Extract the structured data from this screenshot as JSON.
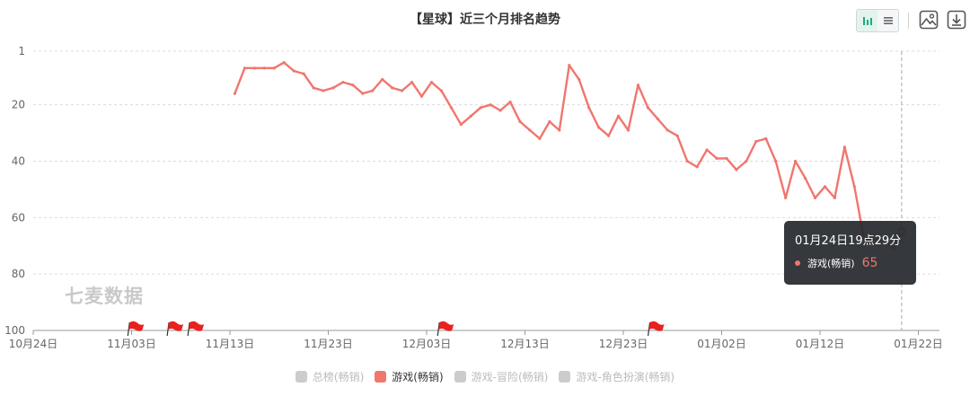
{
  "title": "【星球】近三个月排名趋势",
  "watermark": "七麦数据",
  "toolbar": {
    "icons": [
      "bar-chart-icon",
      "list-icon",
      "image-icon",
      "download-icon"
    ]
  },
  "tooltip": {
    "time": "01月24日19点29分",
    "series": "游戏(畅销)",
    "value": "65"
  },
  "legend": [
    {
      "name": "总榜(畅销)",
      "active": false
    },
    {
      "name": "游戏(畅销)",
      "active": true
    },
    {
      "name": "游戏-冒险(畅销)",
      "active": false
    },
    {
      "name": "游戏-角色扮演(畅销)",
      "active": false
    }
  ],
  "colors": {
    "series": "#f0766e",
    "flag": "#e8211e",
    "tooltip_bg": "#2d3135"
  },
  "chart_data": {
    "type": "line",
    "title": "【星球】近三个月排名趋势",
    "y_axis": {
      "min": 1,
      "max": 100,
      "inverse": true,
      "ticks": [
        "1",
        "20",
        "40",
        "60",
        "80",
        "100"
      ]
    },
    "x_axis": {
      "ticks": [
        "10月24日",
        "11月03日",
        "11月13日",
        "11月23日",
        "12月03日",
        "12月13日",
        "12月23日",
        "01月02日",
        "01月12日",
        "01月22日"
      ]
    },
    "flags_days_from_start": [
      9.8,
      13.8,
      15.9,
      41.3,
      62.7
    ],
    "grid": true,
    "legend_position": "bottom",
    "series": [
      {
        "name": "游戏(畅销)",
        "points": [
          [
            20.5,
            16
          ],
          [
            21.5,
            7
          ],
          [
            22.5,
            7
          ],
          [
            23.5,
            7
          ],
          [
            24.5,
            7
          ],
          [
            25.5,
            5
          ],
          [
            26.5,
            8
          ],
          [
            27.5,
            9
          ],
          [
            28.5,
            14
          ],
          [
            29.5,
            15
          ],
          [
            30.5,
            14
          ],
          [
            31.5,
            12
          ],
          [
            32.5,
            13
          ],
          [
            33.5,
            16
          ],
          [
            34.5,
            15
          ],
          [
            35.5,
            11
          ],
          [
            36.5,
            14
          ],
          [
            37.5,
            15
          ],
          [
            38.5,
            12
          ],
          [
            39.5,
            17
          ],
          [
            40.5,
            12
          ],
          [
            41.5,
            15
          ],
          [
            42.5,
            21
          ],
          [
            43.5,
            27
          ],
          [
            44.5,
            24
          ],
          [
            45.5,
            21
          ],
          [
            46.5,
            20
          ],
          [
            47.5,
            22
          ],
          [
            48.5,
            19
          ],
          [
            49.5,
            26
          ],
          [
            50.5,
            29
          ],
          [
            51.5,
            32
          ],
          [
            52.5,
            26
          ],
          [
            53.5,
            29
          ],
          [
            54.5,
            6
          ],
          [
            55.5,
            11
          ],
          [
            56.5,
            21
          ],
          [
            57.5,
            28
          ],
          [
            58.5,
            31
          ],
          [
            59.5,
            24
          ],
          [
            60.5,
            29
          ],
          [
            61.5,
            13
          ],
          [
            62.5,
            21
          ],
          [
            63.5,
            25
          ],
          [
            64.5,
            29
          ],
          [
            65.5,
            31
          ],
          [
            66.5,
            40
          ],
          [
            67.5,
            42
          ],
          [
            68.5,
            36
          ],
          [
            69.5,
            39
          ],
          [
            70.5,
            39
          ],
          [
            71.5,
            43
          ],
          [
            72.5,
            40
          ],
          [
            73.5,
            33
          ],
          [
            74.5,
            32
          ],
          [
            75.5,
            40
          ],
          [
            76.5,
            53
          ],
          [
            77.5,
            40
          ],
          [
            78.5,
            46
          ],
          [
            79.5,
            53
          ],
          [
            80.5,
            49
          ],
          [
            81.5,
            53
          ],
          [
            82.5,
            35
          ],
          [
            83.5,
            49
          ],
          [
            84.5,
            68
          ],
          [
            85.5,
            68
          ],
          [
            86.5,
            68
          ],
          [
            87.5,
            71
          ],
          [
            88.3,
            65
          ]
        ]
      }
    ]
  }
}
